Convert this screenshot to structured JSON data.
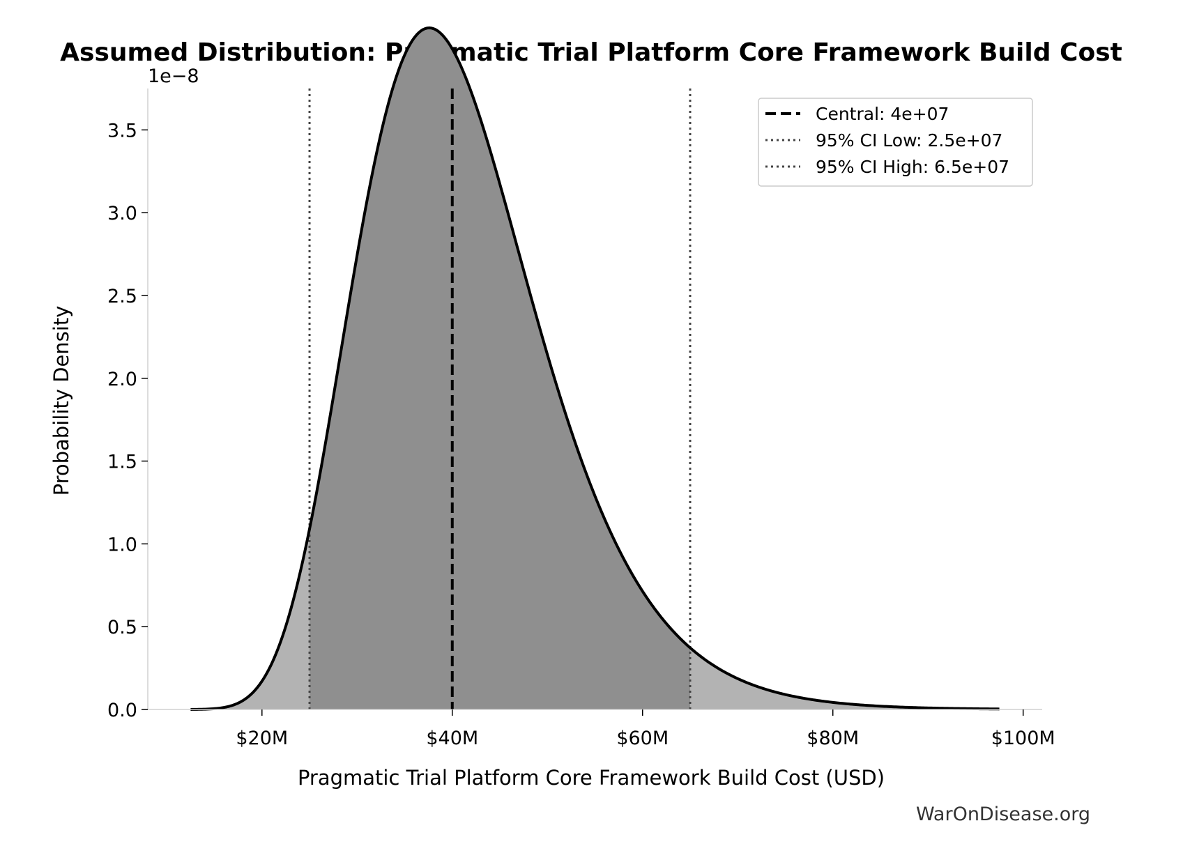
{
  "chart_data": {
    "type": "area",
    "title": "Assumed Distribution: Pragmatic Trial Platform Core Framework Build Cost",
    "xlabel": "Pragmatic Trial Platform Core Framework Build Cost (USD)",
    "ylabel": "Probability Density",
    "y_offset_label": "1e−8",
    "y_scale": 1e-08,
    "xlim": [
      8000000,
      102000000
    ],
    "ylim": [
      0,
      3.75
    ],
    "x_ticks": [
      {
        "value": 20000000,
        "label": "$20M"
      },
      {
        "value": 40000000,
        "label": "$40M"
      },
      {
        "value": 60000000,
        "label": "$60M"
      },
      {
        "value": 80000000,
        "label": "$80M"
      },
      {
        "value": 100000000,
        "label": "$100M"
      }
    ],
    "y_ticks": [
      {
        "value": 0.0,
        "label": "0.0"
      },
      {
        "value": 0.5,
        "label": "0.5"
      },
      {
        "value": 1.0,
        "label": "1.0"
      },
      {
        "value": 1.5,
        "label": "1.5"
      },
      {
        "value": 2.0,
        "label": "2.0"
      },
      {
        "value": 2.5,
        "label": "2.5"
      },
      {
        "value": 3.0,
        "label": "3.0"
      },
      {
        "value": 3.5,
        "label": "3.5"
      }
    ],
    "distribution": {
      "shape": "lognormal",
      "median": 40000000,
      "sigma": 0.25,
      "x_range": [
        12500000,
        97500000
      ]
    },
    "reference_lines": [
      {
        "name": "Central: 4e+07",
        "value": 40000000,
        "style": "dashed",
        "color": "#000000"
      },
      {
        "name": "95% CI Low: 2.5e+07",
        "value": 25000000,
        "style": "dotted",
        "color": "#444444"
      },
      {
        "name": "95% CI High: 6.5e+07",
        "value": 65000000,
        "style": "dotted",
        "color": "#444444"
      }
    ],
    "ci_range": [
      25000000,
      65000000
    ],
    "colors": {
      "curve": "#000000",
      "fill_outer": "#b3b3b3",
      "fill_ci": "#8f8f8f"
    },
    "legend_position": "top-right",
    "grid": false
  },
  "watermark": "WarOnDisease.org"
}
